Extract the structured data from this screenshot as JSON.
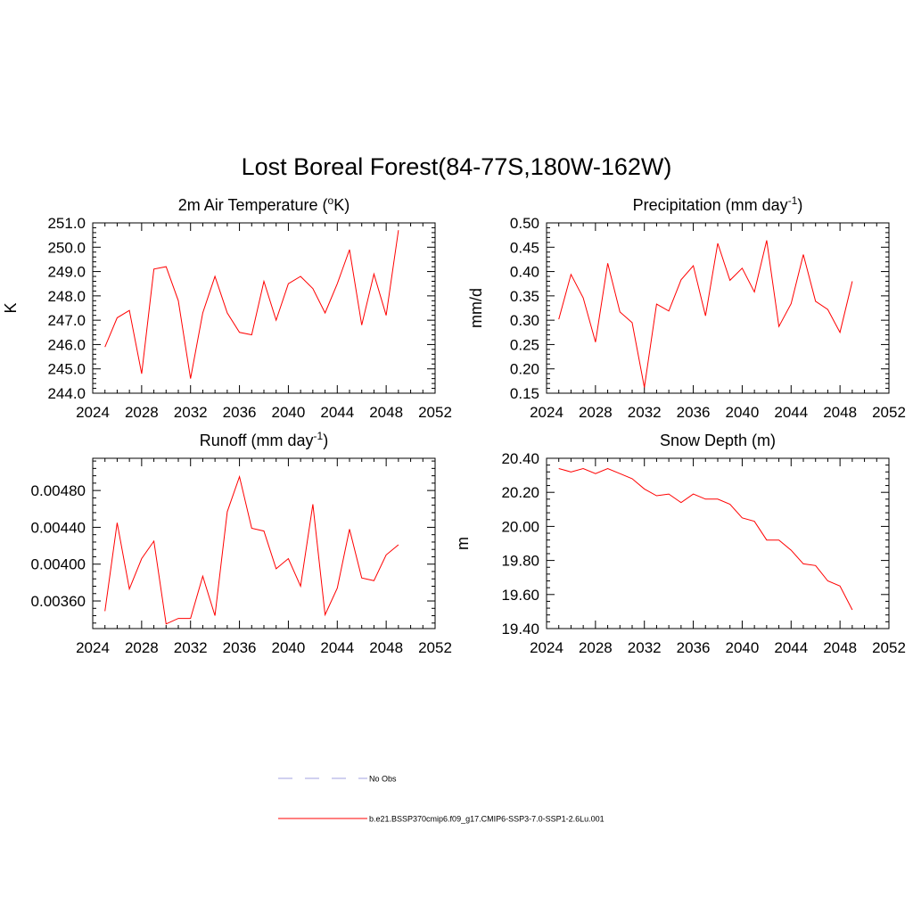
{
  "title": "Lost Boreal Forest(84-77S,180W-162W)",
  "line_color": "#ff0000",
  "obs_color": "#a0a0e0",
  "legend": {
    "obs_label": "No Obs",
    "model_label": "b.e21.BSSP370cmip6.f09_g17.CMIP6-SSP3-7.0-SSP1-2.6Lu.001"
  },
  "chart_data": [
    {
      "type": "line",
      "title_main": "2m Air Temperature (",
      "title_sup": "o",
      "title_post": "K)",
      "ylabel": "K",
      "xlim": [
        2024,
        2052
      ],
      "ylim": [
        244.0,
        251.0
      ],
      "xticks": [
        "2024",
        "2028",
        "2032",
        "2036",
        "2040",
        "2044",
        "2048",
        "2052"
      ],
      "yticks": [
        "244.0",
        "245.0",
        "246.0",
        "247.0",
        "248.0",
        "249.0",
        "250.0",
        "251.0"
      ],
      "series": [
        {
          "x": [
            2025,
            2026,
            2027,
            2028,
            2029,
            2030,
            2031,
            2032,
            2033,
            2034,
            2035,
            2036,
            2037,
            2038,
            2039,
            2040,
            2041,
            2042,
            2043,
            2044,
            2045,
            2046,
            2047,
            2048,
            2049
          ],
          "y": [
            245.9,
            247.1,
            247.4,
            244.8,
            249.1,
            249.2,
            247.8,
            244.6,
            247.3,
            248.8,
            247.3,
            246.5,
            246.4,
            248.6,
            247.0,
            248.5,
            248.8,
            248.3,
            247.3,
            248.5,
            249.9,
            246.8,
            248.9,
            247.2,
            250.7
          ]
        }
      ]
    },
    {
      "type": "line",
      "title_main": "Precipitation (mm day",
      "title_sup": "-1",
      "title_post": ")",
      "ylabel": "mm/d",
      "xlim": [
        2024,
        2052
      ],
      "ylim": [
        0.15,
        0.5
      ],
      "xticks": [
        "2024",
        "2028",
        "2032",
        "2036",
        "2040",
        "2044",
        "2048",
        "2052"
      ],
      "yticks": [
        "0.15",
        "0.20",
        "0.25",
        "0.30",
        "0.35",
        "0.40",
        "0.45",
        "0.50"
      ],
      "series": [
        {
          "x": [
            2025,
            2026,
            2027,
            2028,
            2029,
            2030,
            2031,
            2032,
            2033,
            2034,
            2035,
            2036,
            2037,
            2038,
            2039,
            2040,
            2041,
            2042,
            2043,
            2044,
            2045,
            2046,
            2047,
            2048,
            2049
          ],
          "y": [
            0.302,
            0.394,
            0.346,
            0.255,
            0.417,
            0.317,
            0.295,
            0.162,
            0.333,
            0.319,
            0.383,
            0.412,
            0.309,
            0.458,
            0.382,
            0.407,
            0.358,
            0.464,
            0.287,
            0.334,
            0.435,
            0.339,
            0.322,
            0.275,
            0.38
          ]
        }
      ]
    },
    {
      "type": "line",
      "title_main": "Runoff (mm day",
      "title_sup": "-1",
      "title_post": ")",
      "ylabel": "",
      "xlim": [
        2024,
        2052
      ],
      "ylim": [
        0.0033,
        0.00515
      ],
      "xticks": [
        "2024",
        "2028",
        "2032",
        "2036",
        "2040",
        "2044",
        "2048",
        "2052"
      ],
      "yticks": [
        "0.00360",
        "0.00400",
        "0.00440",
        "0.00480"
      ],
      "ytick_values": [
        0.0036,
        0.004,
        0.0044,
        0.0048
      ],
      "series": [
        {
          "x": [
            2025,
            2026,
            2027,
            2028,
            2029,
            2030,
            2031,
            2032,
            2033,
            2034,
            2035,
            2036,
            2037,
            2038,
            2039,
            2040,
            2041,
            2042,
            2043,
            2044,
            2045,
            2046,
            2047,
            2048,
            2049
          ],
          "y": [
            0.00349,
            0.00445,
            0.00373,
            0.00406,
            0.00425,
            0.00335,
            0.00341,
            0.00341,
            0.00387,
            0.00344,
            0.00457,
            0.00495,
            0.00439,
            0.00436,
            0.00395,
            0.00406,
            0.00376,
            0.00465,
            0.00345,
            0.00374,
            0.00438,
            0.00385,
            0.00382,
            0.0041,
            0.00421
          ]
        }
      ]
    },
    {
      "type": "line",
      "title_main": "Snow Depth (m)",
      "title_sup": "",
      "title_post": "",
      "ylabel": "m",
      "xlim": [
        2024,
        2052
      ],
      "ylim": [
        19.4,
        20.4
      ],
      "xticks": [
        "2024",
        "2028",
        "2032",
        "2036",
        "2040",
        "2044",
        "2048",
        "2052"
      ],
      "yticks": [
        "19.40",
        "19.60",
        "19.80",
        "20.00",
        "20.20",
        "20.40"
      ],
      "series": [
        {
          "x": [
            2025,
            2026,
            2027,
            2028,
            2029,
            2030,
            2031,
            2032,
            2033,
            2034,
            2035,
            2036,
            2037,
            2038,
            2039,
            2040,
            2041,
            2042,
            2043,
            2044,
            2045,
            2046,
            2047,
            2048,
            2049
          ],
          "y": [
            20.34,
            20.32,
            20.34,
            20.31,
            20.34,
            20.31,
            20.28,
            20.22,
            20.18,
            20.19,
            20.14,
            20.19,
            20.16,
            20.16,
            20.13,
            20.05,
            20.03,
            19.92,
            19.92,
            19.86,
            19.78,
            19.77,
            19.68,
            19.65,
            19.51
          ]
        }
      ]
    }
  ]
}
